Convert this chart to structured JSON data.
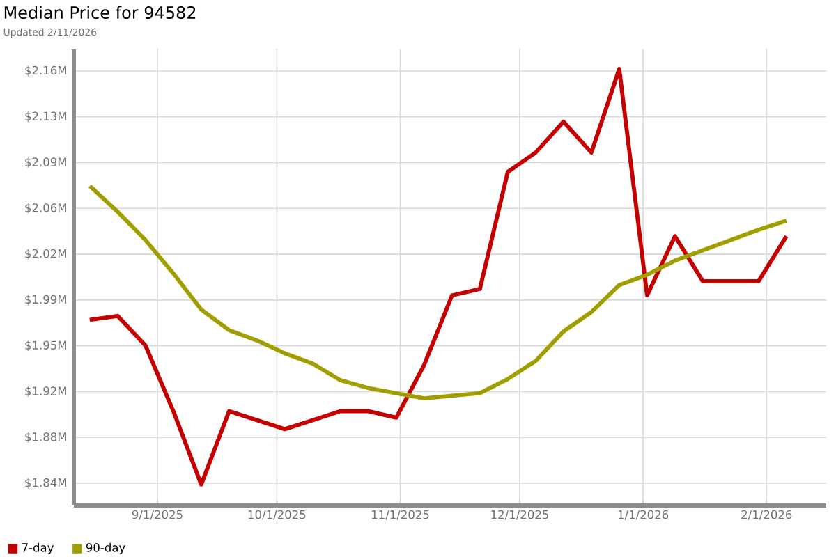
{
  "chart_data": {
    "type": "line",
    "title": "Median Price for 94582",
    "subtitle": "Updated 2/11/2026",
    "x": [
      "2025-08-15",
      "2025-08-22",
      "2025-08-29",
      "2025-09-05",
      "2025-09-12",
      "2025-09-19",
      "2025-09-26",
      "2025-10-03",
      "2025-10-10",
      "2025-10-17",
      "2025-10-24",
      "2025-10-31",
      "2025-11-07",
      "2025-11-14",
      "2025-11-21",
      "2025-11-28",
      "2025-12-05",
      "2025-12-12",
      "2025-12-19",
      "2025-12-26",
      "2026-01-02",
      "2026-01-09",
      "2026-01-16",
      "2026-01-23",
      "2026-01-30",
      "2026-02-06"
    ],
    "series": [
      {
        "name": "7-day",
        "color": "#c40000",
        "values": [
          1.971,
          1.974,
          1.951,
          1.9,
          1.843,
          1.9,
          1.893,
          1.886,
          1.893,
          1.9,
          1.9,
          1.895,
          1.936,
          1.99,
          1.995,
          2.086,
          2.101,
          2.125,
          2.101,
          2.166,
          1.99,
          2.036,
          2.001,
          2.001,
          2.001,
          2.036
        ]
      },
      {
        "name": "90-day",
        "color": "#a09e00",
        "values": [
          2.075,
          2.055,
          2.033,
          2.007,
          1.979,
          1.963,
          1.955,
          1.945,
          1.937,
          1.924,
          1.918,
          1.914,
          1.91,
          1.912,
          1.914,
          1.925,
          1.939,
          1.962,
          1.977,
          1.998,
          2.006,
          2.017,
          2.025,
          2.033,
          2.041,
          2.048
        ]
      }
    ],
    "xlim": [
      "2025-08-11",
      "2026-02-16"
    ],
    "xticks": [
      {
        "value": "2025-09-01",
        "label": "9/1/2025"
      },
      {
        "value": "2025-10-01",
        "label": "10/1/2025"
      },
      {
        "value": "2025-11-01",
        "label": "11/1/2025"
      },
      {
        "value": "2025-12-01",
        "label": "12/1/2025"
      },
      {
        "value": "2026-01-01",
        "label": "1/1/2026"
      },
      {
        "value": "2026-02-01",
        "label": "2/1/2026"
      }
    ],
    "ylim": [
      1.8267,
      2.1817
    ],
    "yticks": [
      {
        "value": 1.844,
        "label": "$1.84M"
      },
      {
        "value": 1.8796,
        "label": "$1.88M"
      },
      {
        "value": 1.9152,
        "label": "$1.92M"
      },
      {
        "value": 1.9508,
        "label": "$1.95M"
      },
      {
        "value": 1.9864,
        "label": "$1.99M"
      },
      {
        "value": 2.022,
        "label": "$2.02M"
      },
      {
        "value": 2.0576,
        "label": "$2.06M"
      },
      {
        "value": 2.0932,
        "label": "$2.09M"
      },
      {
        "value": 2.1288,
        "label": "$2.13M"
      },
      {
        "value": 2.1644,
        "label": "$2.16M"
      }
    ],
    "grid": true,
    "legend": "bottom left"
  }
}
